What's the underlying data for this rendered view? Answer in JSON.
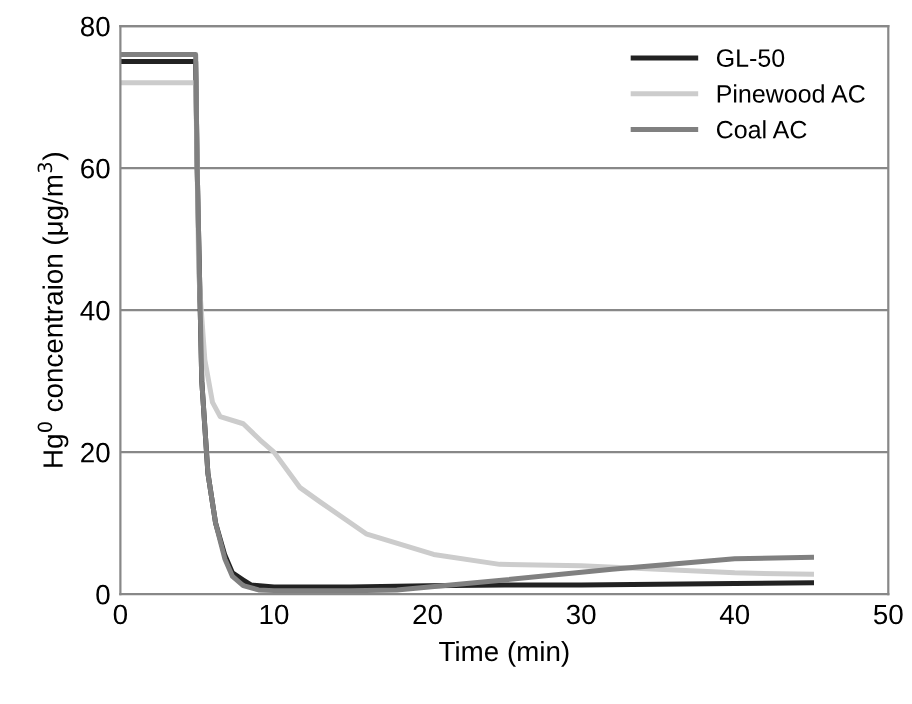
{
  "chart_data": {
    "type": "line",
    "xlabel": "Time (min)",
    "ylabel": "Hg$^{0}$ concentraion (μg/m$^{3}$)",
    "xlim": [
      0,
      50
    ],
    "ylim": [
      0,
      80
    ],
    "xticks": [
      0,
      10,
      20,
      30,
      40,
      50
    ],
    "yticks": [
      0,
      20,
      40,
      60,
      80
    ],
    "grid": "y",
    "legend": "top right",
    "line_style": "solid",
    "marker": "none",
    "series": [
      {
        "name": "GL-50",
        "color": "#222222",
        "x": [
          0,
          2,
          4.9,
          5.0,
          5.3,
          5.7,
          6.2,
          6.8,
          7.3,
          8,
          8.5,
          10,
          15,
          20,
          25,
          30,
          35,
          40,
          45
        ],
        "values": [
          75,
          75,
          75,
          60,
          30,
          17,
          10,
          5.5,
          3,
          2,
          1.3,
          1,
          1,
          1.2,
          1.3,
          1.3,
          1.4,
          1.5,
          1.6
        ]
      },
      {
        "name": "Pinewood AC",
        "color": "#cccccc",
        "x": [
          0,
          2,
          4.9,
          5.0,
          5.1,
          5.5,
          6,
          6.5,
          8,
          9.1,
          10,
          11.7,
          13,
          16,
          20.4,
          24.7,
          30,
          35,
          40,
          45
        ],
        "values": [
          72,
          72,
          72,
          60,
          45,
          33,
          27,
          25,
          24,
          21.7,
          20,
          15,
          13,
          8.5,
          5.6,
          4.2,
          4,
          3.5,
          3,
          2.8
        ]
      },
      {
        "name": "Coal AC",
        "color": "#808080",
        "x": [
          0,
          2,
          4.9,
          5.0,
          5.3,
          5.7,
          6.2,
          6.8,
          7.3,
          8,
          9,
          10,
          15,
          18,
          25,
          32,
          40,
          45
        ],
        "values": [
          76,
          76,
          76,
          60,
          30,
          17,
          10,
          5,
          2.5,
          1.2,
          0.6,
          0.5,
          0.5,
          0.6,
          2,
          3.5,
          5,
          5.2
        ]
      }
    ]
  }
}
